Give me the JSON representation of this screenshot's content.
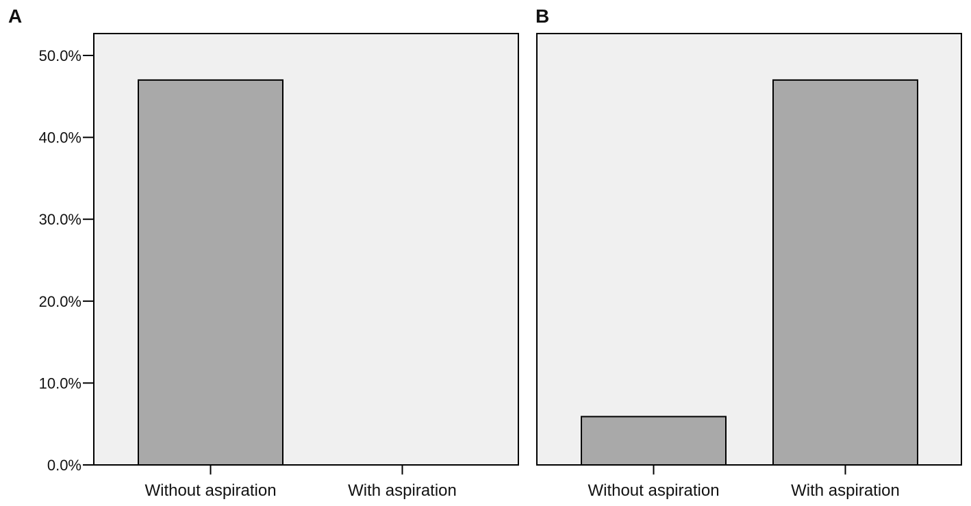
{
  "chart_data": [
    {
      "type": "bar",
      "panel_label": "A",
      "categories": [
        "Without aspiration",
        "With aspiration"
      ],
      "values": [
        47.0,
        0.0
      ],
      "ylim": [
        0,
        50
      ],
      "yticks": [
        "0.0%",
        "10.0%",
        "20.0%",
        "30.0%",
        "40.0%",
        "50.0%"
      ],
      "ytick_values": [
        0,
        10,
        20,
        30,
        40,
        50
      ],
      "y_unit": "%",
      "grid": false,
      "xlabel": "",
      "ylabel": ""
    },
    {
      "type": "bar",
      "panel_label": "B",
      "categories": [
        "Without aspiration",
        "With aspiration"
      ],
      "values": [
        5.9,
        47.0
      ],
      "ylim": [
        0,
        50
      ],
      "y_unit": "%",
      "grid": false,
      "xlabel": "",
      "ylabel": ""
    }
  ],
  "colors": {
    "bar_fill": "#a9a9a9",
    "plot_background": "#f0f0f0",
    "axis": "#000000"
  }
}
